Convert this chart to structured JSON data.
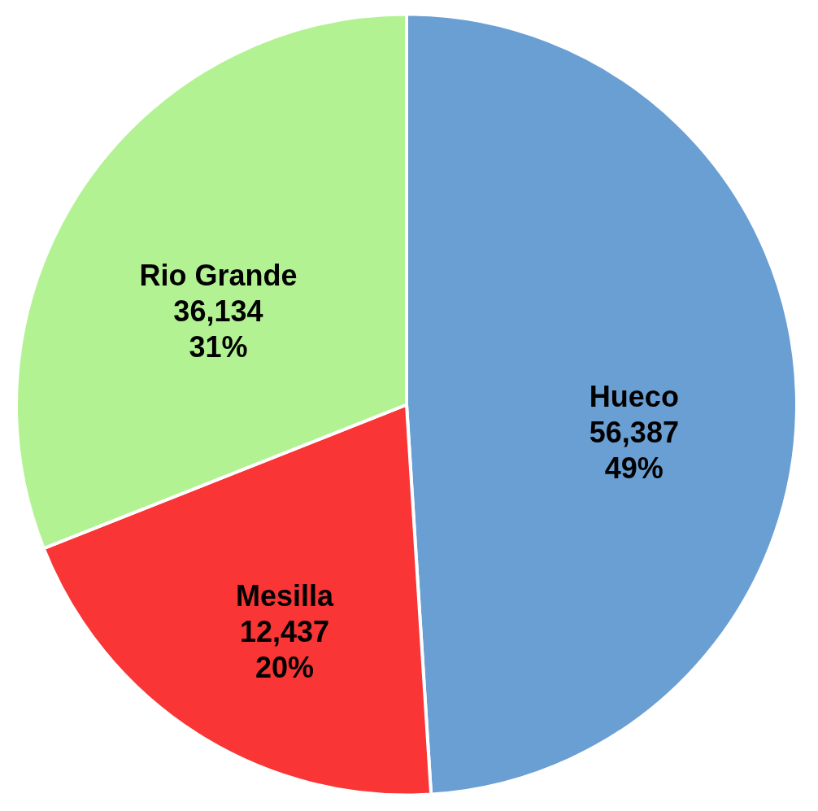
{
  "chart_data": {
    "type": "pie",
    "categories": [
      "Hueco",
      "Mesilla",
      "Rio Grande"
    ],
    "values": [
      49,
      20,
      31
    ],
    "value_labels": [
      "56,387\n49%",
      "12,437\n20%",
      "36,134\n31%"
    ],
    "colors": [
      "#6a9fd4",
      "#f93535",
      "#b3f293"
    ],
    "legend": false
  }
}
